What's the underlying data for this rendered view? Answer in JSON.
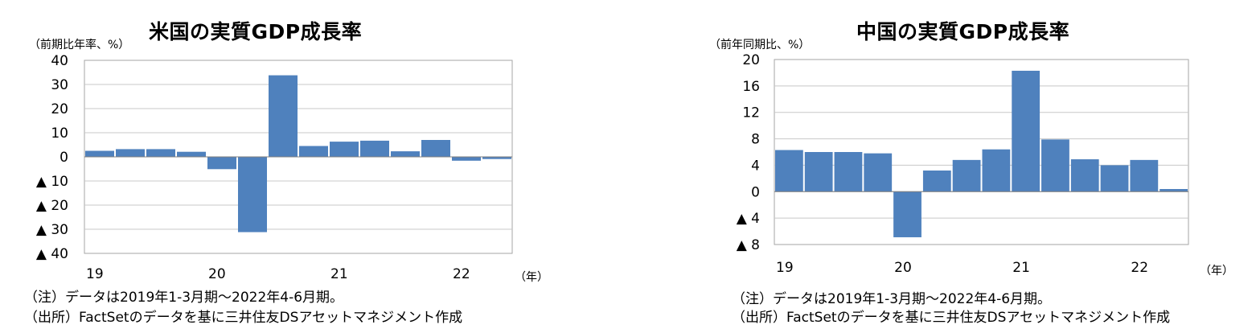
{
  "charts": [
    {
      "id": "us",
      "title": "米国の実質GDP成長率",
      "unit_label": "（前期比年率、%）",
      "year_suffix": "（年）",
      "note": "（注）データは2019年1-3月期～2022年4-6月期。",
      "source": "（出所）FactSetのデータを基に三井住友DSアセットマネジメント作成"
    },
    {
      "id": "cn",
      "title": "中国の実質GDP成長率",
      "unit_label": "（前年同期比、%）",
      "year_suffix": "（年）",
      "note": "（注）データは2019年1-3月期～2022年4-6月期。",
      "source": "（出所）FactSetのデータを基に三井住友DSアセットマネジメント作成"
    }
  ],
  "chart_data": [
    {
      "type": "bar",
      "title": "米国の実質GDP成長率",
      "ylabel": "（前期比年率、%）",
      "xlabel": "（年）",
      "ylim": [
        -40,
        40
      ],
      "yticks": [
        40,
        30,
        20,
        10,
        0,
        -10,
        -20,
        -30,
        -40
      ],
      "ytick_labels": [
        "40",
        "30",
        "20",
        "10",
        "0",
        "▲ 10",
        "▲ 20",
        "▲ 30",
        "▲ 40"
      ],
      "year_labels": [
        {
          "label": "19",
          "start_index": 0
        },
        {
          "label": "20",
          "start_index": 4
        },
        {
          "label": "21",
          "start_index": 8
        },
        {
          "label": "22",
          "start_index": 12
        }
      ],
      "values": [
        2.5,
        3.2,
        3.2,
        2.1,
        -5.1,
        -31.2,
        33.8,
        4.5,
        6.3,
        6.7,
        2.3,
        7.0,
        -1.6,
        -0.9
      ],
      "bar_color": "#4F81BD",
      "grid": true
    },
    {
      "type": "bar",
      "title": "中国の実質GDP成長率",
      "ylabel": "（前年同期比、%）",
      "xlabel": "（年）",
      "ylim": [
        -8,
        20
      ],
      "yticks": [
        20,
        16,
        12,
        8,
        4,
        0,
        -4,
        -8
      ],
      "ytick_labels": [
        "20",
        "16",
        "12",
        "8",
        "4",
        "0",
        "▲ 4",
        "▲ 8"
      ],
      "year_labels": [
        {
          "label": "19",
          "start_index": 0
        },
        {
          "label": "20",
          "start_index": 4
        },
        {
          "label": "21",
          "start_index": 8
        },
        {
          "label": "22",
          "start_index": 12
        }
      ],
      "values": [
        6.3,
        6.0,
        6.0,
        5.8,
        -6.9,
        3.2,
        4.8,
        6.4,
        18.3,
        7.9,
        4.9,
        4.0,
        4.8,
        0.4
      ],
      "bar_color": "#4F81BD",
      "grid": true
    }
  ]
}
